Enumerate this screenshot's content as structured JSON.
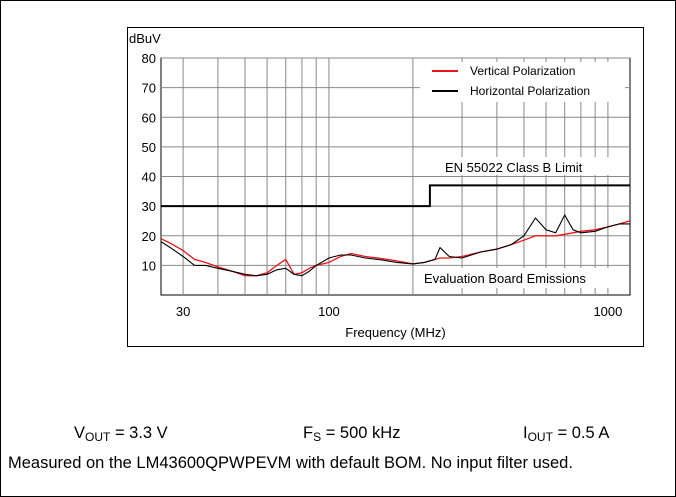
{
  "chart_data": {
    "type": "line",
    "ylabel_unit": "dBuV",
    "xlabel": "Frequency (MHz)",
    "x_scale": "log",
    "xlim": [
      25,
      1200
    ],
    "ylim": [
      0,
      80
    ],
    "y_ticks": [
      10,
      20,
      30,
      40,
      50,
      60,
      70,
      80
    ],
    "x_ticks": [
      30,
      100,
      1000
    ],
    "x_tick_labels": [
      "30",
      "100",
      "1000"
    ],
    "y_tick_labels": [
      "10",
      "20",
      "30",
      "40",
      "50",
      "60",
      "70",
      "80"
    ],
    "grid": true,
    "legend_position": "top-right",
    "series": [
      {
        "name": "Vertical Polarization",
        "color": "#e8141b",
        "x": [
          25,
          27,
          30,
          33,
          36,
          40,
          45,
          50,
          55,
          60,
          65,
          70,
          75,
          80,
          85,
          90,
          100,
          110,
          120,
          135,
          150,
          175,
          200,
          220,
          240,
          250,
          270,
          300,
          350,
          400,
          450,
          500,
          550,
          600,
          650,
          700,
          750,
          800,
          900,
          1000,
          1100,
          1200
        ],
        "y": [
          19,
          17.5,
          15,
          12,
          11,
          9.5,
          8,
          6.5,
          6.5,
          7.5,
          10,
          12,
          7,
          7.5,
          9,
          10,
          11,
          13,
          14,
          13,
          12.5,
          11.5,
          10.5,
          11,
          12,
          12.5,
          12.5,
          13,
          14.5,
          15.5,
          17,
          18.5,
          20,
          20,
          20,
          20.5,
          21,
          21.5,
          22,
          23,
          24,
          25
        ]
      },
      {
        "name": "Horizontal Polarization",
        "color": "#000000",
        "x": [
          25,
          27,
          30,
          33,
          36,
          40,
          45,
          50,
          55,
          60,
          65,
          70,
          75,
          80,
          85,
          90,
          100,
          110,
          120,
          135,
          150,
          175,
          200,
          220,
          240,
          250,
          270,
          300,
          350,
          400,
          450,
          500,
          550,
          600,
          650,
          700,
          750,
          800,
          900,
          1000,
          1100,
          1200
        ],
        "y": [
          18,
          16,
          13,
          10,
          10,
          9,
          8,
          7,
          6.5,
          7,
          8.5,
          9,
          7,
          6.5,
          8,
          10,
          12.5,
          13.5,
          13.5,
          12.5,
          12,
          11,
          10.5,
          11,
          12,
          16,
          13,
          12.5,
          14.5,
          15.5,
          17,
          20,
          26,
          22,
          21,
          27,
          22,
          21,
          21.5,
          23,
          24,
          24
        ]
      },
      {
        "name": "EN 55022 Class B Limit",
        "color": "#000000",
        "x": [
          25,
          230,
          230,
          1200
        ],
        "y": [
          30,
          30,
          37,
          37
        ]
      }
    ],
    "annotations": [
      "EN 55022 Class B Limit",
      "Evaluation Board Emissions"
    ]
  },
  "conditions": {
    "vout_main": "V",
    "vout_sub": "OUT",
    "vout_value": " = 3.3 V",
    "fs_main": "F",
    "fs_sub": "S",
    "fs_value": " = 500 kHz",
    "iout_main": "I",
    "iout_sub": "OUT",
    "iout_value": " = 0.5 A"
  },
  "note": "Measured on the LM43600QPWPEVM with default BOM. No input filter used."
}
